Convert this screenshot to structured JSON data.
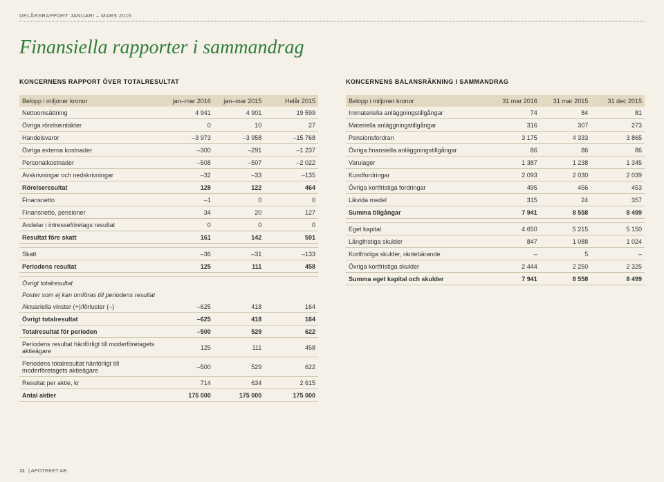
{
  "header": {
    "top_label": "DELÅRSRAPPORT JANUARI – MARS 2016",
    "page_title": "Finansiella rapporter i sammandrag"
  },
  "left": {
    "section_title": "KONCERNENS RAPPORT ÖVER TOTALRESULTAT",
    "col_label": "Belopp i miljoner kronor",
    "cols": [
      "jan–mar 2016",
      "jan–mar 2015",
      "Helår 2015"
    ],
    "rows": [
      {
        "label": "Nettoomsättning",
        "v": [
          "4 941",
          "4 901",
          "19 599"
        ]
      },
      {
        "label": "Övriga rörelseintäkter",
        "v": [
          "0",
          "10",
          "27"
        ]
      },
      {
        "label": "Handelsvaror",
        "v": [
          "–3 973",
          "–3 958",
          "–15 768"
        ]
      },
      {
        "label": "Övriga externa kostnader",
        "v": [
          "–300",
          "–291",
          "–1 237"
        ]
      },
      {
        "label": "Personalkostnader",
        "v": [
          "–508",
          "–507",
          "–2 022"
        ]
      },
      {
        "label": "Avskrivningar och nedskrivningar",
        "v": [
          "–32",
          "–33",
          "–135"
        ]
      },
      {
        "label": "Rörelseresultat",
        "v": [
          "128",
          "122",
          "464"
        ],
        "total": true
      },
      {
        "label": "Finansnetto",
        "v": [
          "–1",
          "0",
          "0"
        ]
      },
      {
        "label": "Finansnetto, pensioner",
        "v": [
          "34",
          "20",
          "127"
        ]
      },
      {
        "label": "Andelar i intresseföretags resultat",
        "v": [
          "0",
          "0",
          "0"
        ]
      },
      {
        "label": "Resultat före skatt",
        "v": [
          "161",
          "142",
          "591"
        ],
        "total": true
      },
      {
        "spacer": true
      },
      {
        "label": "Skatt",
        "v": [
          "–36",
          "–31",
          "–133"
        ]
      },
      {
        "label": "Periodens resultat",
        "v": [
          "125",
          "111",
          "458"
        ],
        "total": true
      },
      {
        "spacer": true
      },
      {
        "label": "Övrigt totalresultat",
        "italic": true,
        "noborder": true,
        "v": [
          "",
          "",
          ""
        ]
      },
      {
        "label": "Poster som ej kan omföras till periodens resultat",
        "italic": true,
        "noborder": true,
        "v": [
          "",
          "",
          ""
        ]
      },
      {
        "label": "Aktuariella vinster (+)/förluster (–)",
        "v": [
          "–625",
          "418",
          "164"
        ]
      },
      {
        "label": "Övrigt totalresultat",
        "v": [
          "–625",
          "418",
          "164"
        ],
        "total": true
      },
      {
        "label": "Totalresultat för perioden",
        "v": [
          "–500",
          "529",
          "622"
        ],
        "total": true
      },
      {
        "label": "Periodens resultat hänförligt till moderföretagets aktieägare",
        "v": [
          "125",
          "111",
          "458"
        ]
      },
      {
        "label": "Periodens totalresultat hänförligt till moderföretagets aktieägare",
        "v": [
          "–500",
          "529",
          "622"
        ]
      },
      {
        "label": "Resultat per aktie, kr",
        "v": [
          "714",
          "634",
          "2 615"
        ]
      },
      {
        "label": "Antal aktier",
        "v": [
          "175 000",
          "175 000",
          "175 000"
        ],
        "total": true
      }
    ]
  },
  "right": {
    "section_title": "KONCERNENS BALANSRÄKNING I SAMMANDRAG",
    "col_label": "Belopp i miljoner kronor",
    "cols": [
      "31 mar 2016",
      "31 mar 2015",
      "31 dec 2015"
    ],
    "rows": [
      {
        "label": "Immateriella anläggningstillgångar",
        "v": [
          "74",
          "84",
          "81"
        ]
      },
      {
        "label": "Materiella anläggningstillgångar",
        "v": [
          "316",
          "307",
          "273"
        ]
      },
      {
        "label": "Pensionsfordran",
        "v": [
          "3 175",
          "4 333",
          "3 865"
        ]
      },
      {
        "label": "Övriga finansiella anläggningstillgångar",
        "v": [
          "86",
          "86",
          "86"
        ]
      },
      {
        "label": "Varulager",
        "v": [
          "1 387",
          "1 238",
          "1 345"
        ]
      },
      {
        "label": "Kundfordringar",
        "v": [
          "2 093",
          "2 030",
          "2 039"
        ]
      },
      {
        "label": "Övriga kortfristiga fordringar",
        "v": [
          "495",
          "456",
          "453"
        ]
      },
      {
        "label": "Likvida medel",
        "v": [
          "315",
          "24",
          "357"
        ]
      },
      {
        "label": "Summa tillgångar",
        "v": [
          "7 941",
          "8 558",
          "8 499"
        ],
        "total": true
      },
      {
        "spacer": true
      },
      {
        "label": "Eget kapital",
        "v": [
          "4 650",
          "5 215",
          "5 150"
        ]
      },
      {
        "label": "Långfristiga skulder",
        "v": [
          "847",
          "1 088",
          "1 024"
        ]
      },
      {
        "label": "Kortfristiga skulder, räntebärande",
        "v": [
          "–",
          "5",
          "–"
        ]
      },
      {
        "label": "Övriga kortfristiga skulder",
        "v": [
          "2 444",
          "2 250",
          "2 325"
        ]
      },
      {
        "label": "Summa eget kapital och skulder",
        "v": [
          "7 941",
          "8 558",
          "8 499"
        ],
        "total": true
      }
    ]
  },
  "footer": {
    "page_num": "11",
    "company": "APOTEKET AB"
  },
  "style": {
    "background": "#f5f0e8",
    "header_band": "#e3d9c2",
    "title_color": "#2e7d3a",
    "rule_color": "#d0c6ae",
    "font_size_body": 9,
    "font_size_title": 28
  }
}
